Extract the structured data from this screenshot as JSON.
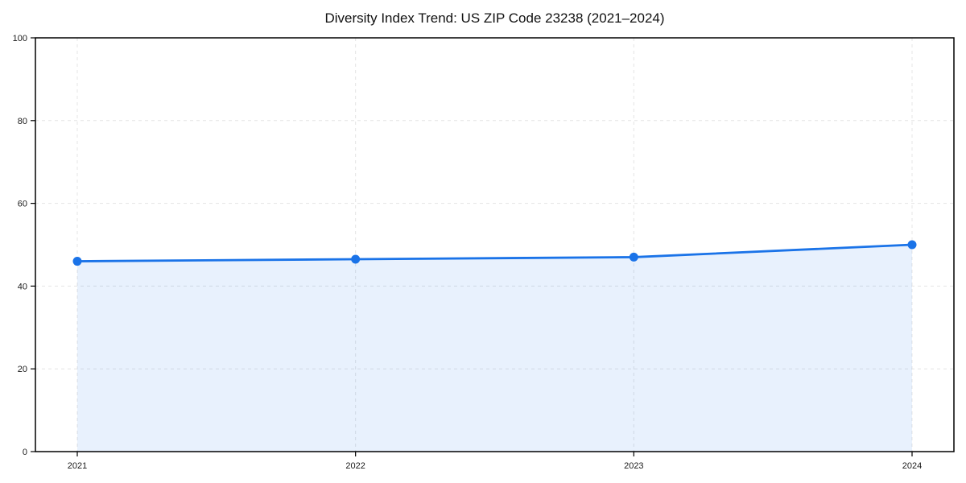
{
  "chart_data": {
    "type": "area",
    "title": "Diversity Index Trend: US ZIP Code 23238 (2021–2024)",
    "categories": [
      "2021",
      "2022",
      "2023",
      "2024"
    ],
    "series": [
      {
        "name": "Diversity Index",
        "values": [
          46,
          46.5,
          47,
          50
        ]
      }
    ],
    "xlabel": "",
    "ylabel": "",
    "ylim": [
      0,
      100
    ],
    "yticks": [
      0,
      20,
      40,
      60,
      80,
      100
    ],
    "grid": {
      "style": "dashed",
      "color": "#e4e4e4"
    },
    "legend": "none",
    "colors": {
      "line": "#1a73e8",
      "marker": "#1a73e8",
      "fill": "rgba(26,115,232,0.10)",
      "axis": "#000000",
      "tick_label": "#1a1a1a",
      "title": "#111111",
      "background": "#ffffff"
    }
  }
}
